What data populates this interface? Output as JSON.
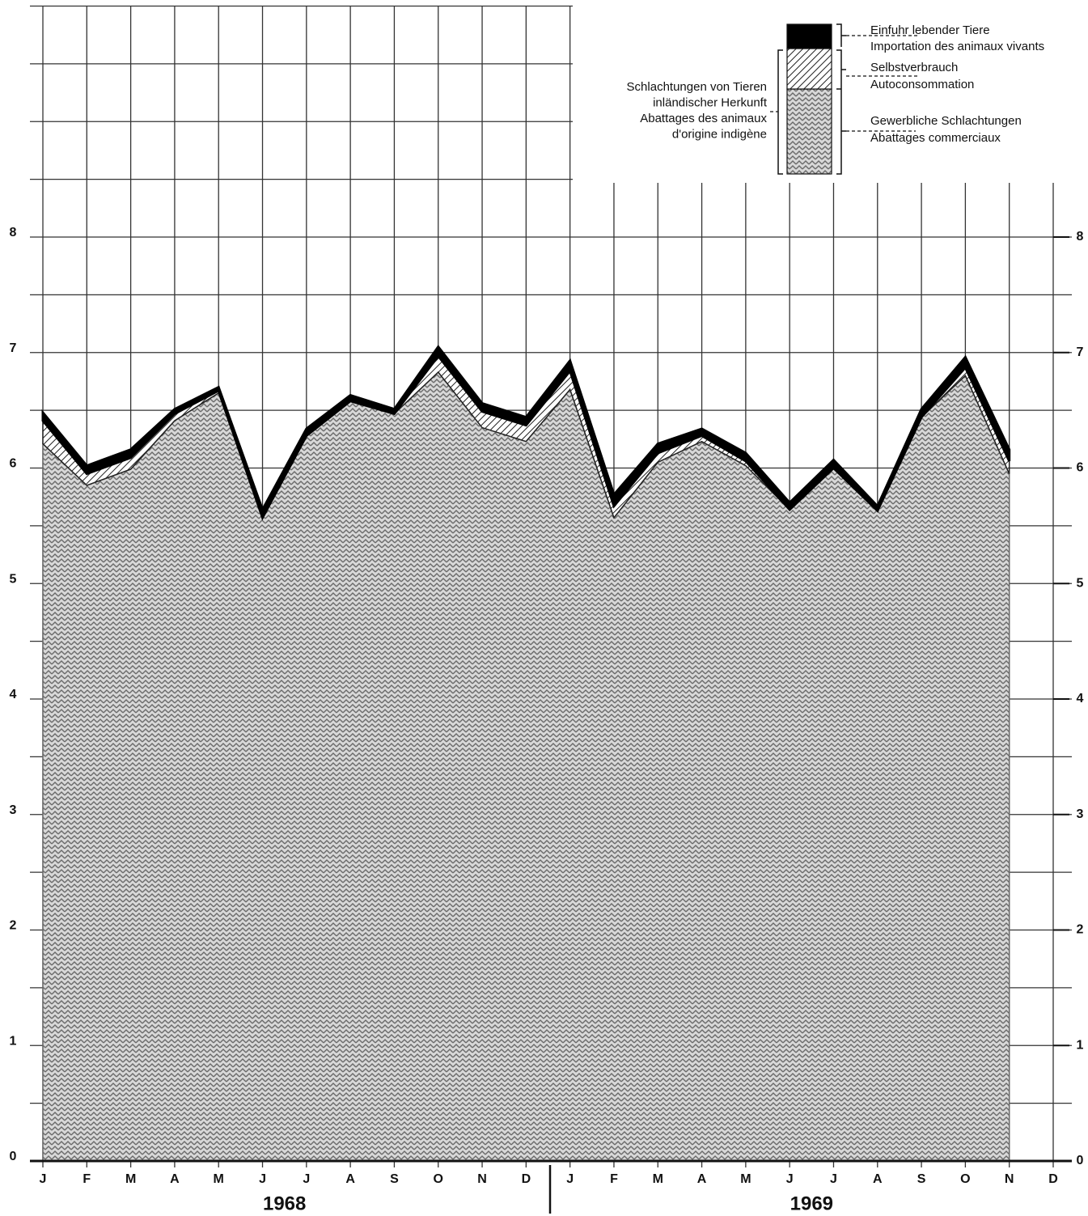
{
  "chart_data": {
    "type": "stacked_area",
    "categories": [
      "J",
      "F",
      "M",
      "A",
      "M",
      "J",
      "J",
      "A",
      "S",
      "O",
      "N",
      "D",
      "J",
      "F",
      "M",
      "A",
      "M",
      "J",
      "J",
      "A",
      "S",
      "O",
      "N",
      "D"
    ],
    "years": [
      "1968",
      "1969"
    ],
    "series": [
      {
        "name": "Gewerbliche Schlachtungen",
        "name_fr": "Abattages commerciaux",
        "color": "#6a6a6a",
        "pattern": "zigzag",
        "values": [
          6.21,
          5.85,
          5.99,
          6.41,
          6.65,
          5.57,
          6.28,
          6.58,
          6.47,
          6.83,
          6.35,
          6.23,
          6.68,
          5.57,
          6.05,
          6.23,
          6.02,
          5.64,
          6.0,
          5.63,
          6.44,
          6.8,
          5.95,
          null
        ]
      },
      {
        "name": "Selbstverbrauch",
        "name_fr": "Autoconsommation",
        "color": "#222222",
        "pattern": "hatch",
        "values": [
          0.2,
          0.1,
          0.1,
          0.06,
          0.02,
          0,
          0,
          0,
          0,
          0.14,
          0.14,
          0.14,
          0.16,
          0.1,
          0.08,
          0.05,
          0.04,
          0,
          0,
          0,
          0,
          0.07,
          0.11,
          null
        ]
      },
      {
        "name": "Einfuhr lebender Tiere",
        "name_fr": "Importation des animaux vivants",
        "color": "#000000",
        "pattern": "solid",
        "values": [
          0.07,
          0.07,
          0.07,
          0.04,
          0.03,
          0.07,
          0.06,
          0.05,
          0.04,
          0.08,
          0.07,
          0.07,
          0.09,
          0.1,
          0.08,
          0.06,
          0.07,
          0.06,
          0.07,
          0.04,
          0.07,
          0.09,
          0.1,
          null
        ]
      }
    ],
    "legend_group_label": [
      "Schlachtungen von Tieren",
      "inländischer Herkunft",
      "Abattages des animaux",
      "d'origine indigène"
    ],
    "ylim": [
      0,
      10
    ],
    "yticks": [
      0,
      1,
      2,
      3,
      4,
      5,
      6,
      7,
      8
    ],
    "minor_yticks": [
      0,
      0.5,
      1,
      1.5,
      2,
      2.5,
      3,
      3.5,
      4,
      4.5,
      5,
      5.5,
      6,
      6.5,
      7,
      7.5,
      8,
      8.5,
      9,
      9.5,
      10
    ],
    "grid": true
  }
}
